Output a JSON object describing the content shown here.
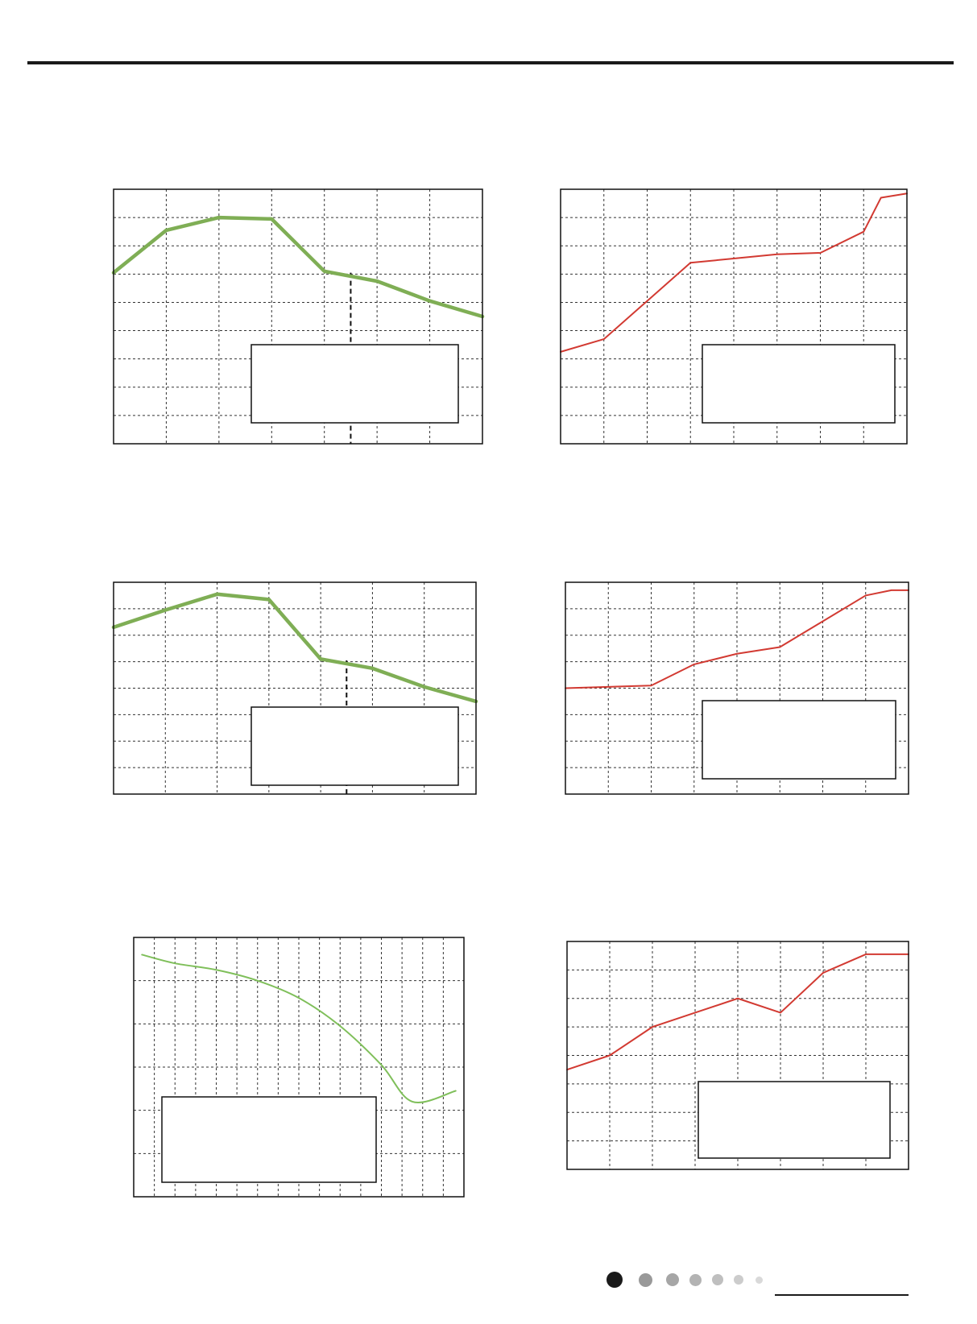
{
  "page": {
    "header_rule_color": "#1a1a1a",
    "footer_dots": [
      {
        "color": "#1a1a1a"
      },
      {
        "color": "#999999"
      },
      {
        "color": "#a6a6a6"
      },
      {
        "color": "#b3b3b3"
      },
      {
        "color": "#bfbfbf"
      },
      {
        "color": "#cccccc"
      },
      {
        "color": "#d9d9d9"
      }
    ]
  },
  "chart_data": [
    {
      "type": "line",
      "color": "#7fae55",
      "line_width": "thick",
      "grid": true,
      "grid_style": "dashed",
      "x_divisions": 7,
      "y_divisions": 9,
      "xlim": [
        0,
        7
      ],
      "ylim": [
        0,
        9
      ],
      "series": [
        {
          "x": [
            0,
            1,
            2,
            3,
            4,
            5,
            6,
            7
          ],
          "y": [
            6.05,
            7.55,
            8.0,
            7.95,
            6.1,
            5.75,
            5.05,
            4.5
          ]
        }
      ],
      "marker_x": 4.5,
      "legend_box": "bottom-right",
      "legend_box_text": ""
    },
    {
      "type": "line",
      "color": "#d23a32",
      "line_width": "thin",
      "grid": true,
      "grid_style": "dashed",
      "x_divisions": 8,
      "y_divisions": 9,
      "xlim": [
        0,
        8
      ],
      "ylim": [
        0,
        9
      ],
      "series": [
        {
          "x": [
            0,
            1,
            2,
            3,
            4,
            5,
            6,
            7,
            7.4,
            8
          ],
          "y": [
            3.25,
            3.7,
            5.05,
            6.4,
            6.55,
            6.7,
            6.75,
            7.5,
            8.7,
            8.85
          ]
        }
      ],
      "legend_box": "bottom-right",
      "legend_box_text": ""
    },
    {
      "type": "line",
      "color": "#7fae55",
      "line_width": "thick",
      "grid": true,
      "grid_style": "dashed",
      "x_divisions": 7,
      "y_divisions": 8,
      "xlim": [
        0,
        7
      ],
      "ylim": [
        0,
        8
      ],
      "series": [
        {
          "x": [
            0,
            1,
            2,
            3,
            4,
            5,
            6,
            7
          ],
          "y": [
            6.3,
            6.95,
            7.55,
            7.35,
            5.1,
            4.75,
            4.05,
            3.5
          ]
        }
      ],
      "marker_x": 4.5,
      "legend_box": "bottom-right",
      "legend_box_text": ""
    },
    {
      "type": "line",
      "color": "#d23a32",
      "line_width": "thin",
      "grid": true,
      "grid_style": "dashed",
      "x_divisions": 8,
      "y_divisions": 8,
      "xlim": [
        0,
        8
      ],
      "ylim": [
        0,
        8
      ],
      "series": [
        {
          "x": [
            0,
            2,
            3,
            4,
            5,
            7,
            7.6,
            8
          ],
          "y": [
            4.0,
            4.1,
            4.9,
            5.3,
            5.55,
            7.5,
            7.7,
            7.7
          ]
        }
      ],
      "legend_box": "bottom-right",
      "legend_box_text": ""
    },
    {
      "type": "line",
      "color": "#7fbf5a",
      "line_width": "thin",
      "curve": "smooth",
      "grid": true,
      "grid_style": "dashed",
      "x_divisions": 16,
      "y_divisions": 6,
      "xlim": [
        0,
        16
      ],
      "ylim": [
        0,
        6
      ],
      "series": [
        {
          "x": [
            0.4,
            2,
            4,
            6,
            8,
            10,
            12,
            13.5,
            15.6
          ],
          "y": [
            5.6,
            5.4,
            5.25,
            5.0,
            4.6,
            3.95,
            3.05,
            2.2,
            2.45
          ]
        }
      ],
      "legend_box": "bottom-left",
      "legend_box_text": ""
    },
    {
      "type": "line",
      "color": "#d23a32",
      "line_width": "thin",
      "grid": true,
      "grid_style": "dashed",
      "x_divisions": 8,
      "y_divisions": 8,
      "xlim": [
        0,
        8
      ],
      "ylim": [
        0,
        8
      ],
      "series": [
        {
          "x": [
            0,
            1,
            2,
            3,
            4,
            5,
            6,
            7,
            8
          ],
          "y": [
            3.5,
            4.0,
            5.0,
            5.5,
            6.0,
            5.5,
            6.9,
            7.55,
            7.55
          ]
        }
      ],
      "legend_box": "bottom-right",
      "legend_box_text": ""
    }
  ]
}
